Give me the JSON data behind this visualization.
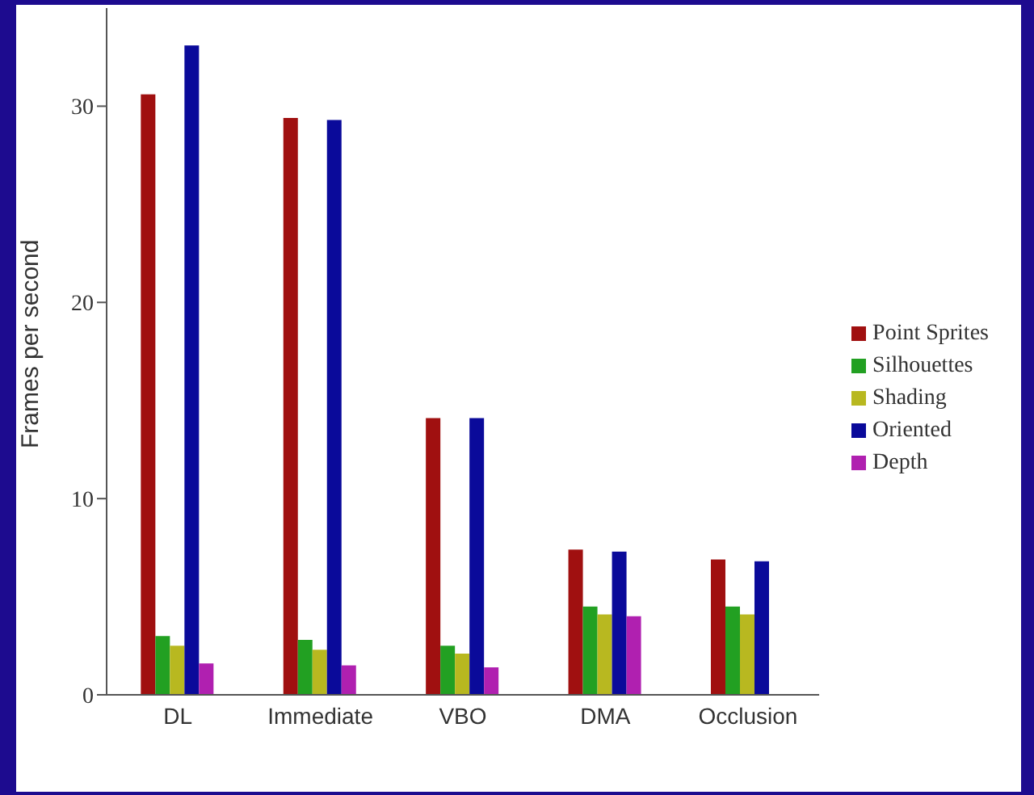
{
  "chart_data": {
    "type": "bar",
    "ylabel": "Frames per second",
    "categories": [
      "DL",
      "Immediate",
      "VBO",
      "DMA",
      "Occlusion"
    ],
    "series": [
      {
        "name": "Point Sprites",
        "color": "#a01010",
        "values": [
          30.6,
          29.4,
          14.1,
          7.4,
          6.9
        ]
      },
      {
        "name": "Silhouettes",
        "color": "#22a022",
        "values": [
          3.0,
          2.8,
          2.5,
          4.5,
          4.5
        ]
      },
      {
        "name": "Shading",
        "color": "#b8b820",
        "values": [
          2.5,
          2.3,
          2.1,
          4.1,
          4.1
        ]
      },
      {
        "name": "Oriented",
        "color": "#0a0a9a",
        "values": [
          33.1,
          29.3,
          14.1,
          7.3,
          6.8
        ]
      },
      {
        "name": "Depth",
        "color": "#b020b0",
        "values": [
          1.6,
          1.5,
          1.4,
          4.0,
          null
        ]
      }
    ],
    "ylim": [
      0,
      35
    ],
    "yticks": [
      0,
      10,
      20,
      30
    ],
    "grid": false,
    "legend": "right"
  }
}
